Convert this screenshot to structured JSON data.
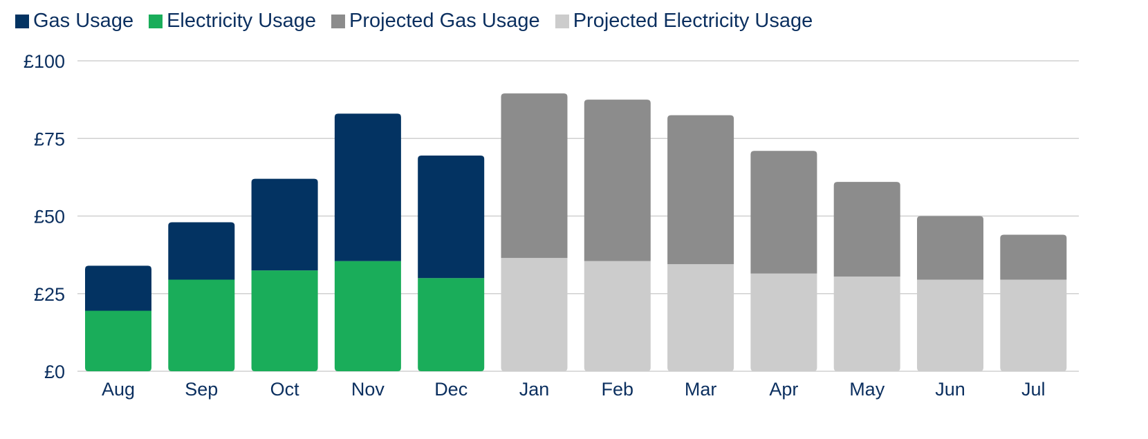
{
  "chart_data": {
    "type": "bar",
    "stacked": true,
    "title": "",
    "xlabel": "",
    "ylabel": "",
    "ylim": [
      0,
      100
    ],
    "y_ticks": [
      {
        "value": 0,
        "label": "£0"
      },
      {
        "value": 25,
        "label": "£25"
      },
      {
        "value": 50,
        "label": "£50"
      },
      {
        "value": 75,
        "label": "£75"
      },
      {
        "value": 100,
        "label": "£100"
      }
    ],
    "categories": [
      "Aug",
      "Sep",
      "Oct",
      "Nov",
      "Dec",
      "Jan",
      "Feb",
      "Mar",
      "Apr",
      "May",
      "Jun",
      "Jul"
    ],
    "grid": true,
    "legend_position": "top-left",
    "series": [
      {
        "name": "Electricity Usage",
        "color": "#1aad5a",
        "values": [
          19.5,
          29.5,
          32.5,
          35.5,
          30,
          null,
          null,
          null,
          null,
          null,
          null,
          null
        ]
      },
      {
        "name": "Gas Usage",
        "color": "#033362",
        "values": [
          14.5,
          18.5,
          29.5,
          47.5,
          39.5,
          null,
          null,
          null,
          null,
          null,
          null,
          null
        ]
      },
      {
        "name": "Projected Electricity Usage",
        "color": "#cccccc",
        "values": [
          null,
          null,
          null,
          null,
          null,
          36.5,
          35.5,
          34.5,
          31.5,
          30.5,
          29.5,
          29.5
        ]
      },
      {
        "name": "Projected Gas Usage",
        "color": "#8c8c8c",
        "values": [
          null,
          null,
          null,
          null,
          null,
          53,
          52,
          48,
          39.5,
          30.5,
          20.5,
          14.5
        ]
      }
    ],
    "legend_order": [
      "Gas Usage",
      "Electricity Usage",
      "Projected Gas Usage",
      "Projected Electricity Usage"
    ],
    "text_color": "#0b2f5f",
    "grid_color": "#d0d0d0"
  }
}
